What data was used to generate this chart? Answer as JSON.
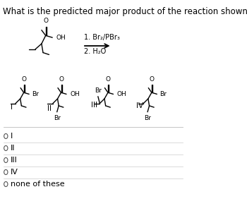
{
  "title": "What is the predicted major product of the reaction shown?",
  "background_color": "#ffffff",
  "text_color": "#000000",
  "reagent_text": "1. Br₂/PBr₃",
  "reagent_text2": "2. H₂O",
  "choices": [
    "I",
    "II",
    "III",
    "IV",
    "none of these"
  ],
  "font_size_title": 8.5,
  "font_size_atom": 6.5,
  "font_size_label": 7.5,
  "font_size_choice": 8,
  "font_size_reagent": 7
}
